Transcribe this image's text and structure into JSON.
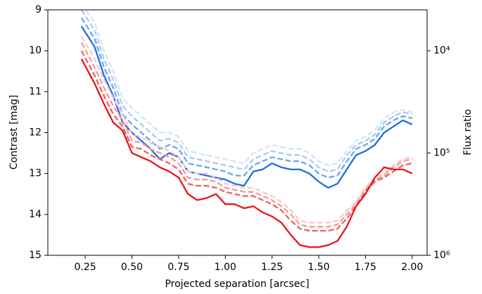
{
  "chart_data": {
    "type": "line",
    "xlabel": "Projected separation [arcsec]",
    "ylabel": "Contrast [mag]",
    "y2label": "Flux ratio",
    "x": [
      0.23,
      0.3,
      0.35,
      0.4,
      0.45,
      0.5,
      0.55,
      0.6,
      0.65,
      0.7,
      0.75,
      0.8,
      0.85,
      0.9,
      0.95,
      1.0,
      1.05,
      1.1,
      1.15,
      1.2,
      1.25,
      1.3,
      1.35,
      1.4,
      1.45,
      1.5,
      1.55,
      1.6,
      1.65,
      1.7,
      1.75,
      1.8,
      1.85,
      1.9,
      1.95,
      2.0
    ],
    "series": [
      {
        "color": "#d3e3fa",
        "linestyle": "dashed",
        "values": [
          8.85,
          9.3,
          10.0,
          10.5,
          11.15,
          11.4,
          11.6,
          11.8,
          12.0,
          12.0,
          12.1,
          12.45,
          12.5,
          12.55,
          12.6,
          12.65,
          12.7,
          12.75,
          12.5,
          12.4,
          12.3,
          12.35,
          12.4,
          12.4,
          12.5,
          12.7,
          12.8,
          12.75,
          12.45,
          12.2,
          12.1,
          11.95,
          11.65,
          11.5,
          11.45,
          11.5
        ]
      },
      {
        "color": "#a9c8f6",
        "linestyle": "dashed",
        "values": [
          9.0,
          9.5,
          10.2,
          10.7,
          11.35,
          11.6,
          11.8,
          12.0,
          12.2,
          12.15,
          12.25,
          12.6,
          12.65,
          12.7,
          12.75,
          12.8,
          12.85,
          12.9,
          12.65,
          12.55,
          12.45,
          12.5,
          12.55,
          12.55,
          12.65,
          12.85,
          12.95,
          12.9,
          12.55,
          12.3,
          12.2,
          12.05,
          11.75,
          11.6,
          11.5,
          11.55
        ]
      },
      {
        "color": "#6ea3f0",
        "linestyle": "dashed",
        "values": [
          9.2,
          9.7,
          10.4,
          10.9,
          11.55,
          11.8,
          12.0,
          12.2,
          12.4,
          12.3,
          12.4,
          12.75,
          12.8,
          12.85,
          12.9,
          12.95,
          13.05,
          13.05,
          12.8,
          12.7,
          12.6,
          12.65,
          12.7,
          12.7,
          12.8,
          13.0,
          13.1,
          13.05,
          12.7,
          12.4,
          12.3,
          12.15,
          11.85,
          11.7,
          11.6,
          11.65
        ]
      },
      {
        "color": "#1a6fe6",
        "linestyle": "solid",
        "values": [
          9.4,
          9.9,
          10.6,
          11.1,
          11.75,
          12.0,
          12.2,
          12.4,
          12.65,
          12.5,
          12.6,
          12.95,
          13.0,
          13.05,
          13.1,
          13.15,
          13.25,
          13.3,
          12.95,
          12.9,
          12.75,
          12.85,
          12.9,
          12.9,
          13.0,
          13.2,
          13.35,
          13.25,
          12.9,
          12.55,
          12.45,
          12.3,
          12.0,
          11.85,
          11.7,
          11.8
        ]
      },
      {
        "color": "#f9c8c8",
        "linestyle": "dashed",
        "values": [
          9.65,
          10.2,
          10.7,
          11.15,
          11.55,
          12.05,
          12.1,
          12.25,
          12.35,
          12.45,
          12.6,
          12.95,
          13.0,
          13.0,
          13.1,
          13.25,
          13.3,
          13.35,
          13.35,
          13.45,
          13.55,
          13.7,
          13.9,
          14.15,
          14.2,
          14.2,
          14.2,
          14.15,
          13.9,
          13.7,
          13.35,
          13.1,
          13.0,
          12.8,
          12.65,
          12.6
        ]
      },
      {
        "color": "#f5999a",
        "linestyle": "dashed",
        "values": [
          9.8,
          10.4,
          10.9,
          11.35,
          11.7,
          12.2,
          12.25,
          12.4,
          12.5,
          12.6,
          12.75,
          13.1,
          13.15,
          13.15,
          13.2,
          13.35,
          13.4,
          13.45,
          13.45,
          13.55,
          13.65,
          13.8,
          14.0,
          14.25,
          14.3,
          14.3,
          14.3,
          14.25,
          14.0,
          13.75,
          13.4,
          13.15,
          13.05,
          12.85,
          12.7,
          12.65
        ]
      },
      {
        "color": "#f0605f",
        "linestyle": "dashed",
        "values": [
          10.0,
          10.6,
          11.1,
          11.55,
          11.85,
          12.35,
          12.4,
          12.55,
          12.65,
          12.75,
          12.9,
          13.25,
          13.3,
          13.3,
          13.35,
          13.45,
          13.5,
          13.55,
          13.55,
          13.65,
          13.75,
          13.9,
          14.15,
          14.35,
          14.4,
          14.4,
          14.4,
          14.35,
          14.1,
          13.8,
          13.45,
          13.2,
          13.1,
          12.95,
          12.8,
          12.75
        ]
      },
      {
        "color": "#e8141a",
        "linestyle": "solid",
        "values": [
          10.2,
          10.8,
          11.3,
          11.75,
          11.95,
          12.5,
          12.6,
          12.7,
          12.85,
          12.95,
          13.1,
          13.5,
          13.65,
          13.6,
          13.5,
          13.75,
          13.75,
          13.85,
          13.8,
          13.95,
          14.05,
          14.2,
          14.5,
          14.75,
          14.8,
          14.8,
          14.75,
          14.65,
          14.3,
          13.8,
          13.5,
          13.1,
          12.85,
          12.9,
          12.9,
          13.0
        ]
      }
    ],
    "xlim": [
      0.05,
      2.08
    ],
    "xticks": [
      0.25,
      {
        "value": 0.5,
        "label": "0.50"
      },
      0.75,
      {
        "value": 1,
        "label": "1.00"
      },
      1.25,
      {
        "value": 1.5,
        "label": "1.50"
      },
      1.75,
      {
        "value": 2,
        "label": "2.00"
      }
    ],
    "ylim": [
      15,
      9
    ],
    "yticks": [
      9,
      10,
      11,
      12,
      13,
      14,
      15
    ],
    "y2lim": [
      1000000,
      3981
    ],
    "y2scale": "log",
    "y2ticks": [
      {
        "value": 10000,
        "label": "10⁴"
      },
      {
        "value": 100000,
        "label": "10⁵"
      },
      {
        "value": 1000000,
        "label": "10⁶"
      }
    ]
  }
}
